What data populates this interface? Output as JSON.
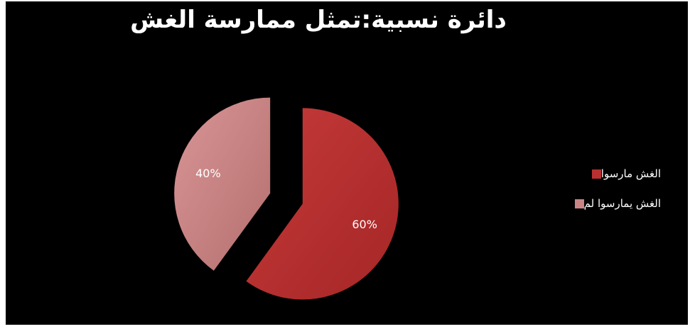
{
  "chart_data": {
    "type": "pie",
    "title": "دائرة نسبية:تمثل ممارسة الغش",
    "categories": [
      "الغش مارسوا",
      "الغش يمارسوا لم"
    ],
    "values": [
      60,
      40
    ],
    "labels": [
      "60%",
      "40%"
    ],
    "colors": [
      "#b83030",
      "#c98585"
    ],
    "exploded": true,
    "legend_position": "right"
  }
}
